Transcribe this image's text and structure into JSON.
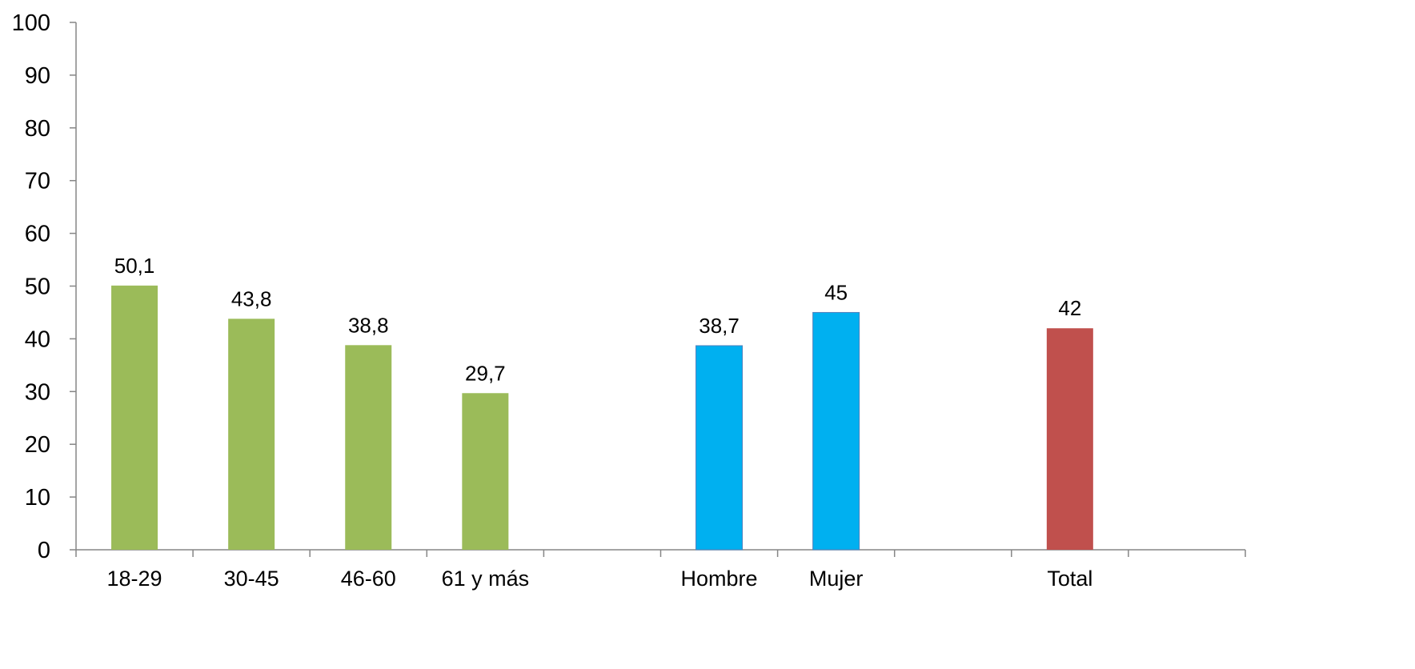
{
  "chart_data": {
    "type": "bar",
    "title": "",
    "xlabel": "",
    "ylabel": "",
    "ylim": [
      0,
      100
    ],
    "yticks": [
      0,
      10,
      20,
      30,
      40,
      50,
      60,
      70,
      80,
      90,
      100
    ],
    "grid": false,
    "legend": "none",
    "categories": [
      "18-29",
      "30-45",
      "46-60",
      "61 y más",
      "",
      "Hombre",
      "Mujer",
      "",
      "Total",
      ""
    ],
    "values": [
      50.1,
      43.8,
      38.8,
      29.7,
      null,
      38.7,
      45,
      null,
      42,
      null
    ],
    "data_labels": [
      "50,1",
      "43,8",
      "38,8",
      "29,7",
      "",
      "38,7",
      "45",
      "",
      "42",
      ""
    ],
    "bar_colors": [
      "#9BBB59",
      "#9BBB59",
      "#9BBB59",
      "#9BBB59",
      null,
      "#00B0F0",
      "#00B0F0",
      null,
      "#C0504D",
      null
    ]
  }
}
